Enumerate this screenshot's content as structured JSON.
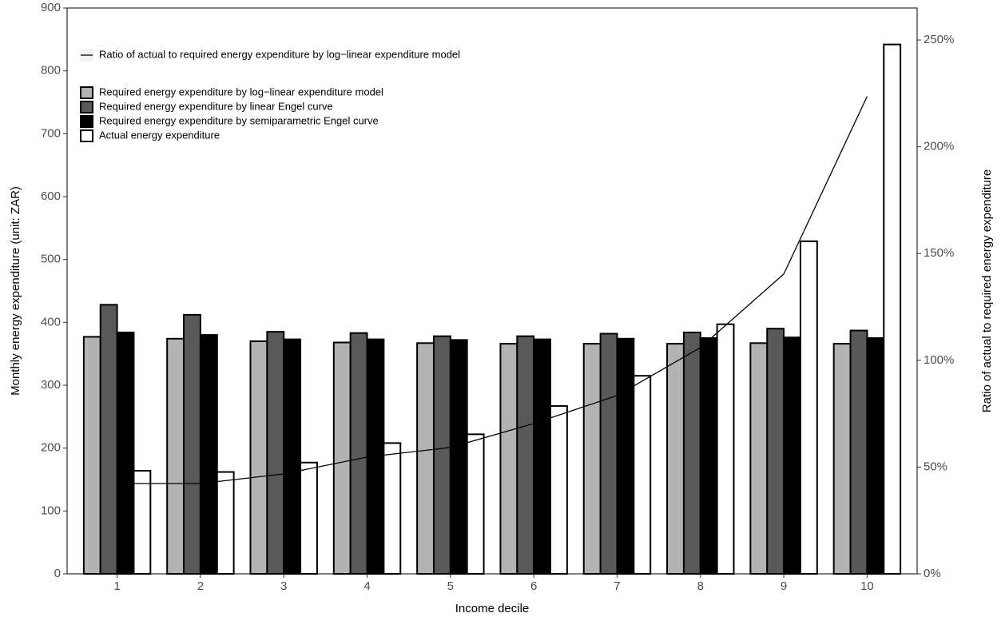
{
  "chart_data": {
    "type": "bar",
    "xlabel": "Income decile",
    "ylabel": "Monthly energy expenditure (unit: ZAR)",
    "y2label": "Ratio of actual to required energy expenditure",
    "categories": [
      "1",
      "2",
      "3",
      "4",
      "5",
      "6",
      "7",
      "8",
      "9",
      "10"
    ],
    "series": [
      {
        "name": "Required energy expenditure by log−linear expenditure model",
        "type": "bar",
        "color": "#b3b3b3",
        "values": [
          377,
          374,
          370,
          368,
          367,
          366,
          366,
          366,
          367,
          366
        ]
      },
      {
        "name": "Required energy expenditure by linear Engel curve",
        "type": "bar",
        "color": "#595959",
        "values": [
          428,
          412,
          385,
          383,
          378,
          378,
          382,
          384,
          390,
          387
        ]
      },
      {
        "name": "Required energy expenditure by semiparametric Engel curve",
        "type": "bar",
        "color": "#000000",
        "values": [
          384,
          380,
          373,
          373,
          372,
          373,
          374,
          375,
          376,
          375
        ]
      },
      {
        "name": "Actual energy expenditure",
        "type": "bar",
        "color": "#ffffff",
        "values": [
          164,
          162,
          177,
          208,
          222,
          267,
          315,
          397,
          529,
          842
        ]
      },
      {
        "name": "Ratio of actual to required energy expenditure by log−linear expenditure model",
        "type": "line",
        "axis": "y2",
        "color": "#000000",
        "values": [
          42.3,
          42.3,
          46.8,
          54.7,
          59.2,
          70.4,
          83.5,
          106,
          140.4,
          223.6
        ]
      }
    ],
    "ylim": [
      0,
      900
    ],
    "yticks": [
      0,
      100,
      200,
      300,
      400,
      500,
      600,
      700,
      800,
      900
    ],
    "y2lim": [
      0,
      265
    ],
    "y2ticks": [
      {
        "value": 0,
        "label": "0%"
      },
      {
        "value": 50,
        "label": "50%"
      },
      {
        "value": 100,
        "label": "100%"
      },
      {
        "value": 150,
        "label": "150%"
      },
      {
        "value": 200,
        "label": "200%"
      },
      {
        "value": 250,
        "label": "250%"
      }
    ],
    "grid": false,
    "legend": "top-left"
  }
}
